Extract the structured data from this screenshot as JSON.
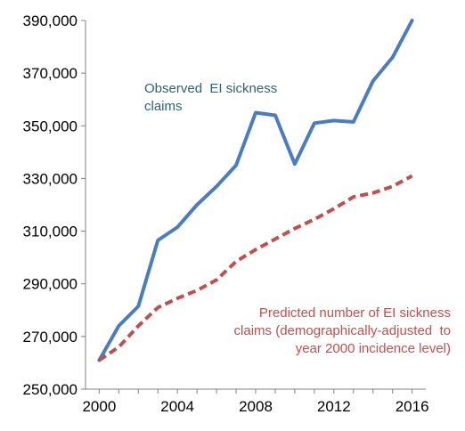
{
  "chart_data": {
    "type": "line",
    "title": "",
    "xlabel": "",
    "ylabel": "",
    "xlim": [
      1999.3,
      2016.7
    ],
    "ylim": [
      250000,
      390000
    ],
    "x_ticks": [
      "2000",
      "2004",
      "2008",
      "2012",
      "2016"
    ],
    "x_tick_values": [
      2000,
      2004,
      2008,
      2012,
      2016
    ],
    "y_ticks": [
      "250,000",
      "270,000",
      "290,000",
      "310,000",
      "330,000",
      "350,000",
      "370,000",
      "390,000"
    ],
    "y_tick_values": [
      250000,
      270000,
      290000,
      310000,
      330000,
      350000,
      370000,
      390000
    ],
    "grid": false,
    "x": [
      2000,
      2001,
      2002,
      2003,
      2004,
      2005,
      2006,
      2007,
      2008,
      2009,
      2010,
      2011,
      2012,
      2013,
      2014,
      2015,
      2016
    ],
    "series": [
      {
        "name": "Observed EI sickness claims",
        "color": "#4a7cc0",
        "style": "solid",
        "values": [
          261000,
          274000,
          281500,
          306500,
          311500,
          320000,
          327000,
          335000,
          355000,
          354000,
          335500,
          351000,
          352000,
          351500,
          367000,
          376000,
          390000
        ]
      },
      {
        "name": "Predicted number of EI sickness claims (demographically-adjusted  to year 2000 incidence level)",
        "color": "#c0504d",
        "style": "dashed",
        "values": [
          261000,
          266000,
          274000,
          281000,
          284500,
          287500,
          291500,
          298500,
          303000,
          307000,
          311000,
          314500,
          318500,
          323000,
          324500,
          327000,
          331000
        ]
      }
    ],
    "annotations": [
      {
        "series": 0,
        "lines": [
          "Observed  EI sickness",
          "claims"
        ],
        "color": "#2e5f7e"
      },
      {
        "series": 1,
        "lines": [
          "Predicted number of EI sickness",
          "claims (demographically-adjusted  to",
          "year 2000 incidence level)"
        ],
        "color": "#c0504d"
      }
    ]
  }
}
